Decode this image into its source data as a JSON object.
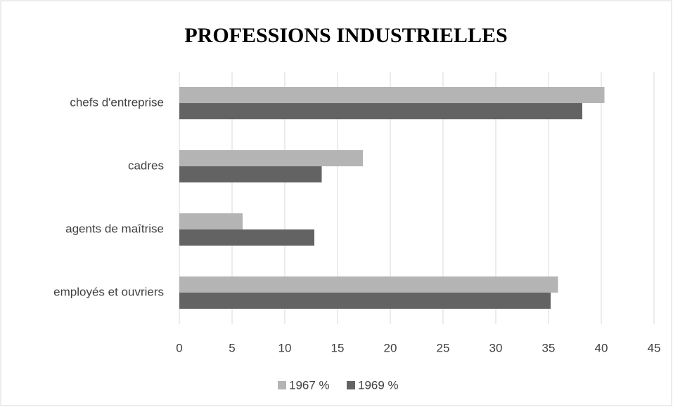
{
  "chart_data": {
    "type": "bar",
    "orientation": "horizontal",
    "title": "PROFESSIONS INDUSTRIELLES",
    "categories": [
      "chefs d'entreprise",
      "cadres",
      "agents de maîtrise",
      "employés et ouvriers"
    ],
    "series": [
      {
        "name": "1967 %",
        "color": "#b4b4b4",
        "values": [
          40.3,
          17.4,
          6.0,
          35.9
        ]
      },
      {
        "name": "1969 %",
        "color": "#636363",
        "values": [
          38.2,
          13.5,
          12.8,
          35.2
        ]
      }
    ],
    "xlim": [
      0,
      45
    ],
    "xticks": [
      0,
      5,
      10,
      15,
      20,
      25,
      30,
      35,
      40,
      45
    ],
    "grid": true,
    "legend": "bottom"
  }
}
